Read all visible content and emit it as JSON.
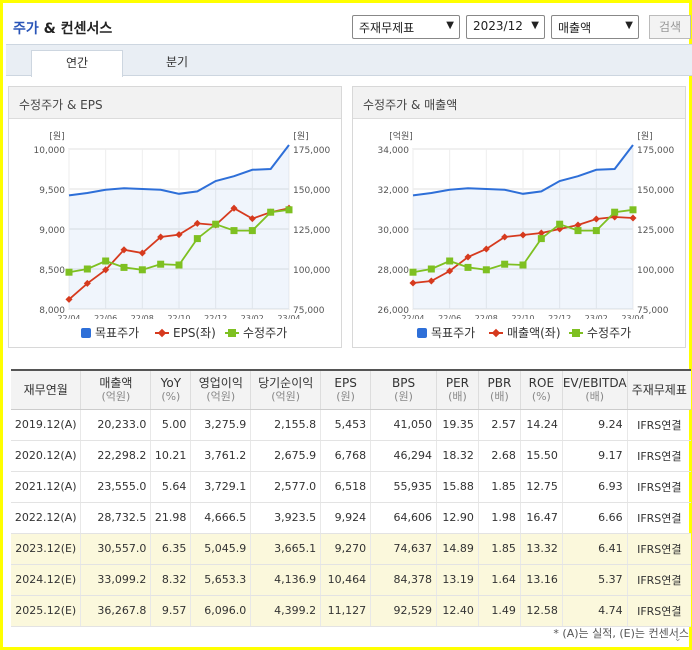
{
  "header": {
    "title_blue": "주가",
    "title_rest": "& 컨센서스",
    "select_statement": "주재무제표",
    "select_period": "2023/12",
    "select_metric": "매출액",
    "search_label": "검색"
  },
  "tabs": [
    {
      "label": "연간",
      "active": true
    },
    {
      "label": "분기",
      "active": false
    }
  ],
  "charts": [
    {
      "title": "수정주가 & EPS",
      "left_unit": "[원]",
      "right_unit": "[원]",
      "left_ticks": [
        "10,000",
        "9,500",
        "9,000",
        "8,500",
        "8,000"
      ],
      "right_ticks": [
        "175,000",
        "150,000",
        "125,000",
        "100,000",
        "75,000"
      ],
      "x_ticks": [
        "22/04",
        "22/06",
        "22/08",
        "22/10",
        "22/12",
        "23/02",
        "23/04"
      ],
      "legend": [
        "목표주가",
        "EPS(좌)",
        "수정주가"
      ]
    },
    {
      "title": "수정주가 & 매출액",
      "left_unit": "[억원]",
      "right_unit": "[원]",
      "left_ticks": [
        "34,000",
        "32,000",
        "30,000",
        "28,000",
        "26,000"
      ],
      "right_ticks": [
        "175,000",
        "150,000",
        "125,000",
        "100,000",
        "75,000"
      ],
      "x_ticks": [
        "22/04",
        "22/06",
        "22/08",
        "22/10",
        "22/12",
        "23/02",
        "23/04"
      ],
      "legend": [
        "목표주가",
        "매출액(좌)",
        "수정주가"
      ]
    }
  ],
  "chart_data": [
    {
      "type": "line",
      "title": "수정주가 & EPS",
      "x": [
        "22/04",
        "22/05",
        "22/06",
        "22/07",
        "22/08",
        "22/09",
        "22/10",
        "22/11",
        "22/12",
        "23/01",
        "23/02",
        "23/03",
        "23/04"
      ],
      "series": [
        {
          "name": "목표주가",
          "axis": "right",
          "values": [
            146000,
            147500,
            149500,
            150500,
            150000,
            149500,
            147000,
            148500,
            155000,
            158000,
            162000,
            162500,
            177500
          ]
        },
        {
          "name": "EPS(좌)",
          "axis": "left",
          "values": [
            8120,
            8320,
            8490,
            8740,
            8700,
            8900,
            8930,
            9070,
            9050,
            9260,
            9130,
            9210,
            9260
          ]
        },
        {
          "name": "수정주가",
          "axis": "right",
          "values": [
            98000,
            100000,
            105000,
            101000,
            99500,
            103000,
            102500,
            119000,
            128000,
            124000,
            124000,
            135500,
            137000
          ]
        }
      ],
      "ylim_left": [
        8000,
        10000
      ],
      "ylim_right": [
        75000,
        175000
      ],
      "grid": true,
      "legend_position": "bottom"
    },
    {
      "type": "line",
      "title": "수정주가 & 매출액",
      "x": [
        "22/04",
        "22/05",
        "22/06",
        "22/07",
        "22/08",
        "22/09",
        "22/10",
        "22/11",
        "22/12",
        "23/01",
        "23/02",
        "23/03",
        "23/04"
      ],
      "series": [
        {
          "name": "목표주가",
          "axis": "right",
          "values": [
            146000,
            147500,
            149500,
            150500,
            150000,
            149500,
            147000,
            148500,
            155000,
            158000,
            162000,
            162500,
            177500
          ]
        },
        {
          "name": "매출액(좌)",
          "axis": "left",
          "values": [
            27300,
            27400,
            27900,
            28600,
            29000,
            29600,
            29700,
            29800,
            30000,
            30200,
            30500,
            30600,
            30550
          ]
        },
        {
          "name": "수정주가",
          "axis": "right",
          "values": [
            98000,
            100000,
            105000,
            101000,
            99500,
            103000,
            102500,
            119000,
            128000,
            124000,
            124000,
            135500,
            137000
          ]
        }
      ],
      "ylim_left": [
        26000,
        34000
      ],
      "ylim_right": [
        75000,
        175000
      ],
      "grid": true,
      "legend_position": "bottom"
    }
  ],
  "table": {
    "headers": [
      {
        "label": "재무연월",
        "unit": ""
      },
      {
        "label": "매출액",
        "unit": "(억원)"
      },
      {
        "label": "YoY",
        "unit": "(%)"
      },
      {
        "label": "영업이익",
        "unit": "(억원)"
      },
      {
        "label": "당기순이익",
        "unit": "(억원)"
      },
      {
        "label": "EPS",
        "unit": "(원)"
      },
      {
        "label": "BPS",
        "unit": "(원)"
      },
      {
        "label": "PER",
        "unit": "(배)"
      },
      {
        "label": "PBR",
        "unit": "(배)"
      },
      {
        "label": "ROE",
        "unit": "(%)"
      },
      {
        "label": "EV/EBITDA",
        "unit": "(배)"
      },
      {
        "label": "주재무제표",
        "unit": ""
      }
    ],
    "rows": [
      {
        "estimate": false,
        "cells": [
          "2019.12(A)",
          "20,233.0",
          "5.00",
          "3,275.9",
          "2,155.8",
          "5,453",
          "41,050",
          "19.35",
          "2.57",
          "14.24",
          "9.24",
          "IFRS연결"
        ]
      },
      {
        "estimate": false,
        "cells": [
          "2020.12(A)",
          "22,298.2",
          "10.21",
          "3,761.2",
          "2,675.9",
          "6,768",
          "46,294",
          "18.32",
          "2.68",
          "15.50",
          "9.17",
          "IFRS연결"
        ]
      },
      {
        "estimate": false,
        "cells": [
          "2021.12(A)",
          "23,555.0",
          "5.64",
          "3,729.1",
          "2,577.0",
          "6,518",
          "55,935",
          "15.88",
          "1.85",
          "12.75",
          "6.93",
          "IFRS연결"
        ]
      },
      {
        "estimate": false,
        "cells": [
          "2022.12(A)",
          "28,732.5",
          "21.98",
          "4,666.5",
          "3,923.5",
          "9,924",
          "64,606",
          "12.90",
          "1.98",
          "16.47",
          "6.66",
          "IFRS연결"
        ]
      },
      {
        "estimate": true,
        "cells": [
          "2023.12(E)",
          "30,557.0",
          "6.35",
          "5,045.9",
          "3,665.1",
          "9,270",
          "74,637",
          "14.89",
          "1.85",
          "13.32",
          "6.41",
          "IFRS연결"
        ]
      },
      {
        "estimate": true,
        "cells": [
          "2024.12(E)",
          "33,099.2",
          "8.32",
          "5,653.3",
          "4,136.9",
          "10,464",
          "84,378",
          "13.19",
          "1.64",
          "13.16",
          "5.37",
          "IFRS연결"
        ]
      },
      {
        "estimate": true,
        "cells": [
          "2025.12(E)",
          "36,267.8",
          "9.57",
          "6,096.0",
          "4,399.2",
          "11,127",
          "92,529",
          "12.40",
          "1.49",
          "12.58",
          "4.74",
          "IFRS연결"
        ]
      }
    ]
  },
  "footnote": "* (A)는 실적, (E)는 컨센서스",
  "colors": {
    "target_price": "#2e6fd8",
    "left_series": "#d63a1e",
    "adj_price": "#7ec021",
    "estimate_row": "#fbf8dc",
    "frame": "#ffff00"
  }
}
